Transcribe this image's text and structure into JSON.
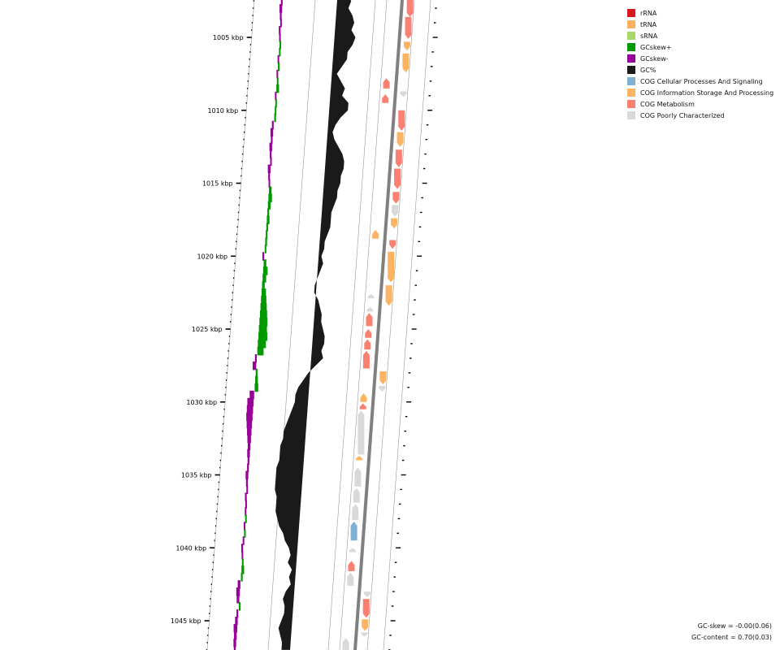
{
  "colors": {
    "gc_content": "#1a1a1a",
    "gc_skew_plus": "#009900",
    "gc_skew_minus": "#990099",
    "backbone": "#808080",
    "ring_line": "#999999"
  },
  "legend": [
    {
      "label": "rRNA",
      "color": "#d7191c"
    },
    {
      "label": "tRNA",
      "color": "#fdae61"
    },
    {
      "label": "sRNA",
      "color": "#a6d96a"
    },
    {
      "label": "GCskew+",
      "color": "#009900"
    },
    {
      "label": "GCskew-",
      "color": "#990099"
    },
    {
      "label": "GC%",
      "color": "#1a1a1a"
    },
    {
      "label": "COG Cellular Processes And Signaling",
      "color": "#80b1d3"
    },
    {
      "label": "COG Information Storage And Processing",
      "color": "#fdb462"
    },
    {
      "label": "COG Metabolism",
      "color": "#fb8072"
    },
    {
      "label": "COG Poorly Characterized",
      "color": "#d9d9d9"
    }
  ],
  "stats": {
    "gc_skew": "GC-skew = -0.00(0.06)",
    "gc_content": "GC-content = 0.70(0.03)"
  },
  "axis": {
    "unit": "kbp",
    "major_ticks": [
      "1005 kbp",
      "1010 kbp",
      "1015 kbp",
      "1020 kbp",
      "1025 kbp",
      "1030 kbp",
      "1035 kbp",
      "1040 kbp",
      "1045 kbp"
    ]
  },
  "features": [
    {
      "start_kbp": 1001.8,
      "end_kbp": 1003.6,
      "strand": "-",
      "category": "COG Metabolism"
    },
    {
      "start_kbp": 1003.6,
      "end_kbp": 1005.1,
      "strand": "-",
      "category": "COG Metabolism"
    },
    {
      "start_kbp": 1005.3,
      "end_kbp": 1005.9,
      "strand": "-",
      "category": "COG Information Storage And Processing"
    },
    {
      "start_kbp": 1006.1,
      "end_kbp": 1007.4,
      "strand": "-",
      "category": "COG Information Storage And Processing"
    },
    {
      "start_kbp": 1007.8,
      "end_kbp": 1008.5,
      "strand": "+",
      "category": "COG Metabolism"
    },
    {
      "start_kbp": 1008.7,
      "end_kbp": 1009.1,
      "strand": "-",
      "category": "COG Poorly Characterized"
    },
    {
      "start_kbp": 1008.9,
      "end_kbp": 1009.5,
      "strand": "+",
      "category": "COG Metabolism"
    },
    {
      "start_kbp": 1010.0,
      "end_kbp": 1011.4,
      "strand": "-",
      "category": "COG Metabolism"
    },
    {
      "start_kbp": 1011.5,
      "end_kbp": 1012.5,
      "strand": "-",
      "category": "COG Information Storage And Processing"
    },
    {
      "start_kbp": 1012.7,
      "end_kbp": 1013.9,
      "strand": "-",
      "category": "COG Metabolism"
    },
    {
      "start_kbp": 1014.0,
      "end_kbp": 1015.4,
      "strand": "-",
      "category": "COG Metabolism"
    },
    {
      "start_kbp": 1015.6,
      "end_kbp": 1016.4,
      "strand": "-",
      "category": "COG Metabolism"
    },
    {
      "start_kbp": 1016.5,
      "end_kbp": 1017.3,
      "strand": "-",
      "category": "COG Poorly Characterized"
    },
    {
      "start_kbp": 1017.4,
      "end_kbp": 1018.1,
      "strand": "-",
      "category": "COG Information Storage And Processing"
    },
    {
      "start_kbp": 1018.2,
      "end_kbp": 1018.8,
      "strand": "+",
      "category": "COG Information Storage And Processing"
    },
    {
      "start_kbp": 1018.9,
      "end_kbp": 1019.5,
      "strand": "-",
      "category": "COG Metabolism"
    },
    {
      "start_kbp": 1019.7,
      "end_kbp": 1021.8,
      "strand": "-",
      "category": "COG Information Storage And Processing"
    },
    {
      "start_kbp": 1022.0,
      "end_kbp": 1023.4,
      "strand": "-",
      "category": "COG Information Storage And Processing"
    },
    {
      "start_kbp": 1022.6,
      "end_kbp": 1022.9,
      "strand": "+",
      "category": "COG Poorly Characterized"
    },
    {
      "start_kbp": 1023.5,
      "end_kbp": 1023.8,
      "strand": "+",
      "category": "COG Poorly Characterized"
    },
    {
      "start_kbp": 1023.9,
      "end_kbp": 1024.8,
      "strand": "+",
      "category": "COG Metabolism"
    },
    {
      "start_kbp": 1025.0,
      "end_kbp": 1025.6,
      "strand": "+",
      "category": "COG Metabolism"
    },
    {
      "start_kbp": 1025.7,
      "end_kbp": 1026.4,
      "strand": "+",
      "category": "COG Metabolism"
    },
    {
      "start_kbp": 1026.5,
      "end_kbp": 1027.7,
      "strand": "+",
      "category": "COG Metabolism"
    },
    {
      "start_kbp": 1027.9,
      "end_kbp": 1028.8,
      "strand": "-",
      "category": "COG Information Storage And Processing"
    },
    {
      "start_kbp": 1028.9,
      "end_kbp": 1029.3,
      "strand": "-",
      "category": "COG Poorly Characterized"
    },
    {
      "start_kbp": 1029.4,
      "end_kbp": 1030.0,
      "strand": "+",
      "category": "COG Information Storage And Processing"
    },
    {
      "start_kbp": 1030.1,
      "end_kbp": 1030.5,
      "strand": "+",
      "category": "COG Metabolism"
    },
    {
      "start_kbp": 1030.6,
      "end_kbp": 1033.6,
      "strand": "+",
      "category": "COG Poorly Characterized"
    },
    {
      "start_kbp": 1033.7,
      "end_kbp": 1034.0,
      "strand": "+",
      "category": "COG Information Storage And Processing"
    },
    {
      "start_kbp": 1034.5,
      "end_kbp": 1035.8,
      "strand": "+",
      "category": "COG Poorly Characterized"
    },
    {
      "start_kbp": 1035.9,
      "end_kbp": 1036.9,
      "strand": "+",
      "category": "COG Poorly Characterized"
    },
    {
      "start_kbp": 1037.0,
      "end_kbp": 1038.1,
      "strand": "+",
      "category": "COG Poorly Characterized"
    },
    {
      "start_kbp": 1038.2,
      "end_kbp": 1039.5,
      "strand": "+",
      "category": "COG Cellular Processes And Signaling"
    },
    {
      "start_kbp": 1040.0,
      "end_kbp": 1040.3,
      "strand": "+",
      "category": "COG Poorly Characterized"
    },
    {
      "start_kbp": 1040.9,
      "end_kbp": 1041.6,
      "strand": "+",
      "category": "COG Metabolism"
    },
    {
      "start_kbp": 1041.7,
      "end_kbp": 1042.6,
      "strand": "+",
      "category": "COG Poorly Characterized"
    },
    {
      "start_kbp": 1043.0,
      "end_kbp": 1043.4,
      "strand": "-",
      "category": "COG Poorly Characterized"
    },
    {
      "start_kbp": 1043.5,
      "end_kbp": 1044.8,
      "strand": "-",
      "category": "COG Metabolism"
    },
    {
      "start_kbp": 1044.9,
      "end_kbp": 1045.7,
      "strand": "-",
      "category": "COG Information Storage And Processing"
    },
    {
      "start_kbp": 1045.8,
      "end_kbp": 1046.1,
      "strand": "-",
      "category": "COG Poorly Characterized"
    },
    {
      "start_kbp": 1046.2,
      "end_kbp": 1047.0,
      "strand": "+",
      "category": "COG Poorly Characterized"
    }
  ],
  "gc_content": [
    [
      1000.5,
      0.68
    ],
    [
      1001.0,
      0.72
    ],
    [
      1001.5,
      0.68
    ],
    [
      1002.0,
      0.7
    ],
    [
      1002.5,
      0.73
    ],
    [
      1003.0,
      0.72
    ],
    [
      1003.5,
      0.74
    ],
    [
      1004.0,
      0.75
    ],
    [
      1004.5,
      0.74
    ],
    [
      1005.0,
      0.76
    ],
    [
      1005.5,
      0.75
    ],
    [
      1006.0,
      0.73
    ],
    [
      1006.5,
      0.73
    ],
    [
      1007.0,
      0.71
    ],
    [
      1007.5,
      0.69
    ],
    [
      1008.0,
      0.71
    ],
    [
      1008.5,
      0.73
    ],
    [
      1009.0,
      0.72
    ],
    [
      1009.5,
      0.75
    ],
    [
      1010.0,
      0.75
    ],
    [
      1010.5,
      0.72
    ],
    [
      1011.0,
      0.7
    ],
    [
      1011.5,
      0.69
    ],
    [
      1012.0,
      0.7
    ],
    [
      1012.5,
      0.72
    ],
    [
      1013.0,
      0.74
    ],
    [
      1013.5,
      0.75
    ],
    [
      1014.0,
      0.75
    ],
    [
      1014.5,
      0.74
    ],
    [
      1015.0,
      0.74
    ],
    [
      1015.5,
      0.73
    ],
    [
      1016.0,
      0.73
    ],
    [
      1016.5,
      0.72
    ],
    [
      1017.0,
      0.71
    ],
    [
      1017.5,
      0.71
    ],
    [
      1018.0,
      0.71
    ],
    [
      1018.5,
      0.7
    ],
    [
      1019.0,
      0.69
    ],
    [
      1019.5,
      0.69
    ],
    [
      1020.0,
      0.68
    ],
    [
      1020.5,
      0.69
    ],
    [
      1021.0,
      0.68
    ],
    [
      1021.5,
      0.67
    ],
    [
      1022.0,
      0.66
    ],
    [
      1022.5,
      0.66
    ],
    [
      1023.0,
      0.68
    ],
    [
      1023.5,
      0.69
    ],
    [
      1024.0,
      0.7
    ],
    [
      1024.5,
      0.7
    ],
    [
      1025.0,
      0.71
    ],
    [
      1025.5,
      0.72
    ],
    [
      1026.0,
      0.72
    ],
    [
      1026.5,
      0.71
    ],
    [
      1027.0,
      0.72
    ],
    [
      1027.5,
      0.69
    ],
    [
      1028.0,
      0.66
    ],
    [
      1028.5,
      0.64
    ],
    [
      1029.0,
      0.62
    ],
    [
      1029.5,
      0.61
    ],
    [
      1030.0,
      0.61
    ],
    [
      1030.5,
      0.6
    ],
    [
      1031.0,
      0.59
    ],
    [
      1031.5,
      0.58
    ],
    [
      1032.0,
      0.57
    ],
    [
      1032.5,
      0.57
    ],
    [
      1033.0,
      0.56
    ],
    [
      1033.5,
      0.56
    ],
    [
      1034.0,
      0.56
    ],
    [
      1034.5,
      0.55
    ],
    [
      1035.0,
      0.55
    ],
    [
      1035.5,
      0.55
    ],
    [
      1036.0,
      0.55
    ],
    [
      1036.5,
      0.56
    ],
    [
      1037.0,
      0.56
    ],
    [
      1037.5,
      0.56
    ],
    [
      1038.0,
      0.57
    ],
    [
      1038.5,
      0.58
    ],
    [
      1039.0,
      0.6
    ],
    [
      1039.5,
      0.61
    ],
    [
      1040.0,
      0.63
    ],
    [
      1040.5,
      0.64
    ],
    [
      1041.0,
      0.63
    ],
    [
      1041.5,
      0.65
    ],
    [
      1042.0,
      0.64
    ],
    [
      1042.5,
      0.65
    ],
    [
      1043.0,
      0.63
    ],
    [
      1043.5,
      0.62
    ],
    [
      1044.0,
      0.63
    ],
    [
      1044.5,
      0.63
    ],
    [
      1045.0,
      0.62
    ],
    [
      1045.5,
      0.61
    ],
    [
      1046.0,
      0.62
    ],
    [
      1046.5,
      0.63
    ],
    [
      1047.0,
      0.63
    ]
  ],
  "gc_skew": [
    [
      1000.5,
      -0.02
    ],
    [
      1001.0,
      -0.03
    ],
    [
      1001.5,
      -0.02
    ],
    [
      1002.0,
      -0.03
    ],
    [
      1002.5,
      -0.02
    ],
    [
      1003.0,
      -0.03
    ],
    [
      1003.5,
      -0.02
    ],
    [
      1004.0,
      -0.01
    ],
    [
      1004.5,
      -0.02
    ],
    [
      1005.0,
      -0.01
    ],
    [
      1005.5,
      0.01
    ],
    [
      1006.0,
      0.0
    ],
    [
      1006.5,
      -0.01
    ],
    [
      1007.0,
      0.02
    ],
    [
      1007.5,
      -0.01
    ],
    [
      1008.0,
      0.01
    ],
    [
      1008.5,
      0.03
    ],
    [
      1009.0,
      -0.01
    ],
    [
      1009.5,
      0.0
    ],
    [
      1010.0,
      0.01
    ],
    [
      1010.5,
      0.02
    ],
    [
      1011.0,
      -0.02
    ],
    [
      1011.5,
      -0.03
    ],
    [
      1012.0,
      -0.02
    ],
    [
      1012.5,
      -0.03
    ],
    [
      1013.0,
      -0.02
    ],
    [
      1013.5,
      -0.01
    ],
    [
      1014.0,
      -0.03
    ],
    [
      1014.5,
      -0.02
    ],
    [
      1015.0,
      -0.01
    ],
    [
      1015.5,
      0.03
    ],
    [
      1016.0,
      0.04
    ],
    [
      1016.5,
      0.03
    ],
    [
      1017.0,
      0.02
    ],
    [
      1017.5,
      0.03
    ],
    [
      1018.0,
      0.02
    ],
    [
      1018.5,
      0.01
    ],
    [
      1019.0,
      0.02
    ],
    [
      1019.5,
      0.01
    ],
    [
      1020.0,
      -0.02
    ],
    [
      1020.5,
      0.03
    ],
    [
      1021.0,
      0.05
    ],
    [
      1021.5,
      0.04
    ],
    [
      1022.0,
      0.03
    ],
    [
      1022.5,
      0.05
    ],
    [
      1023.0,
      0.06
    ],
    [
      1023.5,
      0.07
    ],
    [
      1024.0,
      0.08
    ],
    [
      1024.5,
      0.09
    ],
    [
      1025.0,
      0.09
    ],
    [
      1025.5,
      0.1
    ],
    [
      1026.0,
      0.09
    ],
    [
      1026.5,
      0.07
    ],
    [
      1027.0,
      -0.02
    ],
    [
      1027.5,
      -0.04
    ],
    [
      1028.0,
      0.02
    ],
    [
      1028.5,
      0.03
    ],
    [
      1029.0,
      0.04
    ],
    [
      1029.5,
      -0.05
    ],
    [
      1030.0,
      -0.07
    ],
    [
      1030.5,
      -0.07
    ],
    [
      1031.0,
      -0.07
    ],
    [
      1031.5,
      -0.06
    ],
    [
      1032.0,
      -0.05
    ],
    [
      1032.5,
      -0.04
    ],
    [
      1033.0,
      -0.03
    ],
    [
      1033.5,
      -0.03
    ],
    [
      1034.0,
      -0.02
    ],
    [
      1034.5,
      -0.02
    ],
    [
      1035.0,
      -0.03
    ],
    [
      1035.5,
      -0.02
    ],
    [
      1036.0,
      -0.01
    ],
    [
      1036.5,
      -0.02
    ],
    [
      1037.0,
      -0.01
    ],
    [
      1037.5,
      -0.01
    ],
    [
      1038.0,
      0.01
    ],
    [
      1038.5,
      -0.01
    ],
    [
      1039.0,
      0.0
    ],
    [
      1039.5,
      -0.01
    ],
    [
      1040.0,
      -0.02
    ],
    [
      1040.5,
      -0.01
    ],
    [
      1041.0,
      0.01
    ],
    [
      1041.5,
      0.03
    ],
    [
      1042.0,
      0.02
    ],
    [
      1042.5,
      -0.03
    ],
    [
      1043.0,
      -0.04
    ],
    [
      1043.5,
      -0.03
    ],
    [
      1044.0,
      0.02
    ],
    [
      1044.5,
      -0.02
    ],
    [
      1045.0,
      -0.03
    ],
    [
      1045.5,
      -0.04
    ],
    [
      1046.0,
      -0.03
    ],
    [
      1046.5,
      -0.03
    ],
    [
      1047.0,
      -0.02
    ]
  ]
}
